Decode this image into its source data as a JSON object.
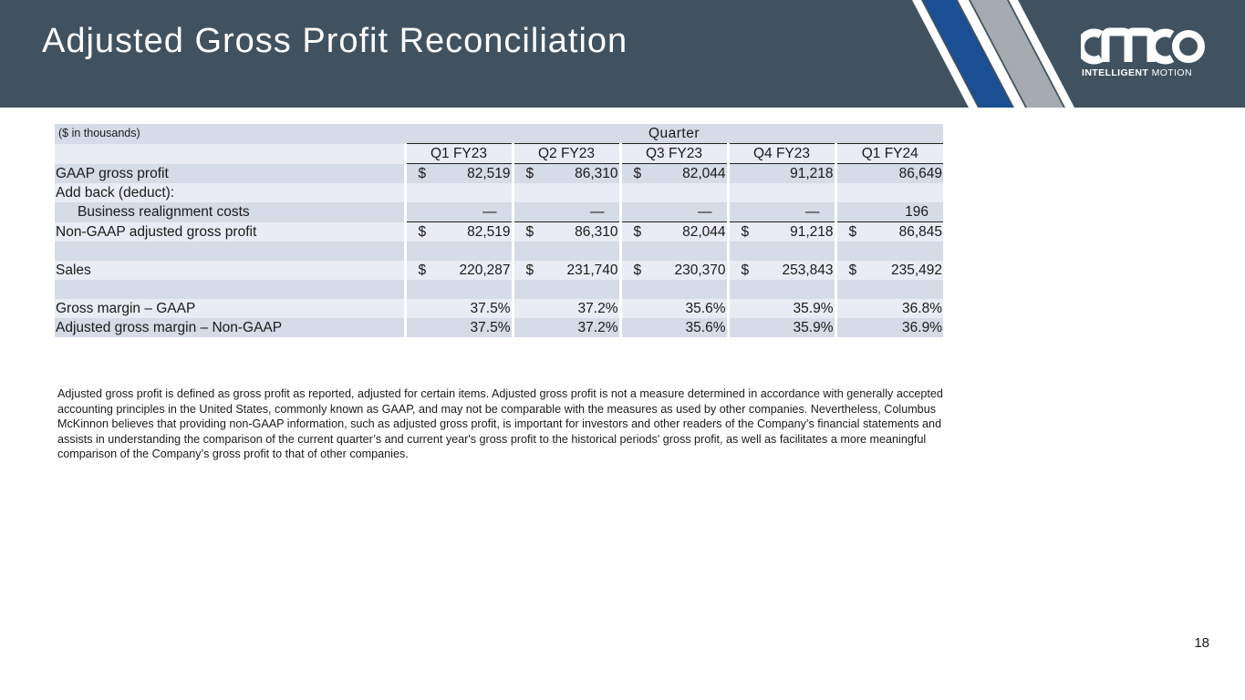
{
  "slide": {
    "title": "Adjusted Gross Profit Reconciliation",
    "page_number": "18"
  },
  "logo": {
    "wordmark": "CMCO",
    "tagline_bold": "INTELLIGENT",
    "tagline_rest": "MOTION",
    "colors": {
      "stripe_blue": "#1a4f94",
      "stripe_gray": "#a5abb1",
      "header_bg": "#405260"
    }
  },
  "table": {
    "units_label": "($ in thousands)",
    "group_header": "Quarter",
    "quarters": [
      "Q1 FY23",
      "Q2 FY23",
      "Q3 FY23",
      "Q4 FY23",
      "Q1 FY24"
    ],
    "rows": {
      "gaap_gross_profit": {
        "label": "GAAP gross profit",
        "currency": [
          "$",
          "$",
          "$",
          "",
          ""
        ],
        "values": [
          "82,519",
          "86,310",
          "82,044",
          "91,218",
          "86,649"
        ]
      },
      "add_back": {
        "label": "Add back (deduct):"
      },
      "business_realignment": {
        "label": "Business realignment costs",
        "values": [
          "—",
          "—",
          "—",
          "—",
          "196"
        ]
      },
      "non_gaap_adjusted": {
        "label": "Non-GAAP adjusted gross profit",
        "currency": [
          "$",
          "$",
          "$",
          "$",
          "$"
        ],
        "values": [
          "82,519",
          "86,310",
          "82,044",
          "91,218",
          "86,845"
        ]
      },
      "sales": {
        "label": "Sales",
        "currency": [
          "$",
          "$",
          "$",
          "$",
          "$"
        ],
        "values": [
          "220,287",
          "231,740",
          "230,370",
          "253,843",
          "235,492"
        ]
      },
      "gross_margin_gaap": {
        "label": "Gross margin – GAAP",
        "values": [
          "37.5%",
          "37.2%",
          "35.6%",
          "35.9%",
          "36.8%"
        ]
      },
      "adjusted_gross_margin": {
        "label": "Adjusted gross margin – Non-GAAP",
        "values": [
          "37.5%",
          "37.2%",
          "35.6%",
          "35.9%",
          "36.9%"
        ]
      }
    }
  },
  "footnote": "Adjusted gross profit is defined as gross profit as reported, adjusted for certain items.  Adjusted gross profit is not a measure determined in accordance with generally accepted accounting principles in the United States, commonly known as GAAP, and may not be comparable with the measures as used by other companies.  Nevertheless, Columbus McKinnon believes that providing non-GAAP information, such as adjusted gross profit, is important for investors and other readers of the Company’s financial statements and assists in understanding the comparison of the current quarter’s and current year's gross profit to the historical periods' gross profit, as well as facilitates a more meaningful comparison of the Company’s gross profit to that of other companies."
}
